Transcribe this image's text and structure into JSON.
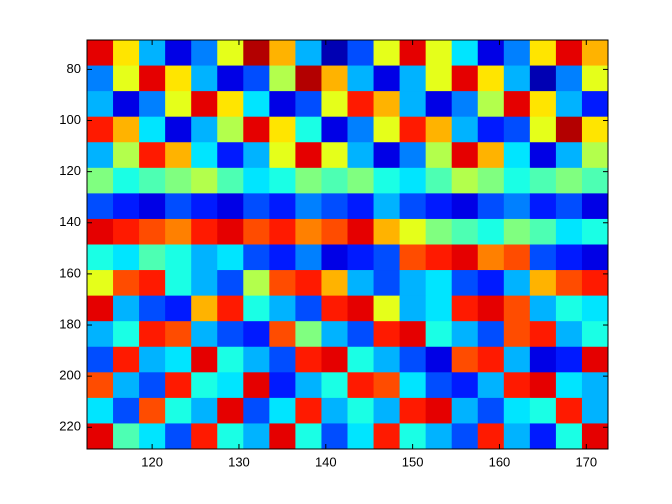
{
  "chart_data": {
    "type": "heatmap",
    "colormap": "jet",
    "clim": [
      0,
      1
    ],
    "xlim": [
      112.5,
      172.5
    ],
    "ylim": [
      68.5,
      228.5
    ],
    "y_reversed": true,
    "xticks": [
      120,
      130,
      140,
      150,
      160,
      170
    ],
    "yticks": [
      80,
      100,
      120,
      140,
      160,
      180,
      200,
      220
    ],
    "z": [
      [
        0.9,
        0.65,
        0.3,
        0.1,
        0.25,
        0.6,
        0.95,
        0.7,
        0.3,
        0.05,
        0.2,
        0.6,
        0.9,
        0.6,
        0.35,
        0.1,
        0.25,
        0.65,
        0.9,
        0.7
      ],
      [
        0.25,
        0.6,
        0.9,
        0.65,
        0.3,
        0.1,
        0.2,
        0.55,
        0.95,
        0.7,
        0.3,
        0.1,
        0.3,
        0.6,
        0.9,
        0.65,
        0.3,
        0.05,
        0.25,
        0.6
      ],
      [
        0.3,
        0.1,
        0.25,
        0.6,
        0.9,
        0.65,
        0.35,
        0.1,
        0.2,
        0.6,
        0.85,
        0.7,
        0.3,
        0.1,
        0.25,
        0.55,
        0.9,
        0.65,
        0.3,
        0.15
      ],
      [
        0.85,
        0.7,
        0.35,
        0.1,
        0.3,
        0.55,
        0.9,
        0.65,
        0.4,
        0.1,
        0.25,
        0.6,
        0.85,
        0.7,
        0.3,
        0.15,
        0.2,
        0.6,
        0.95,
        0.65
      ],
      [
        0.3,
        0.55,
        0.85,
        0.7,
        0.35,
        0.15,
        0.3,
        0.6,
        0.9,
        0.6,
        0.3,
        0.1,
        0.25,
        0.55,
        0.9,
        0.7,
        0.35,
        0.1,
        0.3,
        0.55
      ],
      [
        0.5,
        0.4,
        0.45,
        0.5,
        0.55,
        0.45,
        0.35,
        0.4,
        0.5,
        0.45,
        0.5,
        0.4,
        0.35,
        0.45,
        0.55,
        0.5,
        0.4,
        0.45,
        0.5,
        0.45
      ],
      [
        0.2,
        0.15,
        0.1,
        0.2,
        0.15,
        0.1,
        0.2,
        0.15,
        0.25,
        0.2,
        0.15,
        0.3,
        0.2,
        0.15,
        0.1,
        0.2,
        0.25,
        0.15,
        0.2,
        0.1
      ],
      [
        0.9,
        0.85,
        0.8,
        0.75,
        0.85,
        0.9,
        0.8,
        0.85,
        0.75,
        0.8,
        0.9,
        0.7,
        0.6,
        0.5,
        0.45,
        0.4,
        0.5,
        0.45,
        0.35,
        0.4
      ],
      [
        0.4,
        0.35,
        0.45,
        0.4,
        0.3,
        0.35,
        0.2,
        0.15,
        0.25,
        0.1,
        0.15,
        0.2,
        0.8,
        0.85,
        0.9,
        0.75,
        0.8,
        0.2,
        0.15,
        0.1
      ],
      [
        0.6,
        0.8,
        0.85,
        0.4,
        0.3,
        0.2,
        0.55,
        0.8,
        0.85,
        0.7,
        0.3,
        0.2,
        0.3,
        0.35,
        0.2,
        0.15,
        0.3,
        0.7,
        0.8,
        0.85
      ],
      [
        0.9,
        0.3,
        0.2,
        0.15,
        0.7,
        0.85,
        0.4,
        0.3,
        0.2,
        0.85,
        0.9,
        0.6,
        0.3,
        0.35,
        0.85,
        0.9,
        0.8,
        0.3,
        0.4,
        0.35
      ],
      [
        0.3,
        0.4,
        0.85,
        0.8,
        0.3,
        0.2,
        0.15,
        0.8,
        0.5,
        0.3,
        0.2,
        0.85,
        0.9,
        0.4,
        0.3,
        0.2,
        0.8,
        0.85,
        0.3,
        0.4
      ],
      [
        0.2,
        0.85,
        0.3,
        0.35,
        0.9,
        0.4,
        0.3,
        0.2,
        0.85,
        0.9,
        0.4,
        0.3,
        0.2,
        0.1,
        0.8,
        0.85,
        0.3,
        0.1,
        0.15,
        0.9
      ],
      [
        0.8,
        0.3,
        0.2,
        0.85,
        0.4,
        0.35,
        0.9,
        0.15,
        0.3,
        0.4,
        0.85,
        0.8,
        0.35,
        0.2,
        0.15,
        0.3,
        0.85,
        0.9,
        0.35,
        0.3
      ],
      [
        0.35,
        0.2,
        0.8,
        0.4,
        0.3,
        0.9,
        0.2,
        0.35,
        0.85,
        0.3,
        0.4,
        0.3,
        0.85,
        0.9,
        0.3,
        0.2,
        0.35,
        0.4,
        0.85,
        0.3
      ],
      [
        0.9,
        0.45,
        0.35,
        0.2,
        0.85,
        0.4,
        0.3,
        0.9,
        0.4,
        0.2,
        0.35,
        0.85,
        0.4,
        0.3,
        0.2,
        0.85,
        0.3,
        0.15,
        0.4,
        0.9
      ]
    ]
  }
}
